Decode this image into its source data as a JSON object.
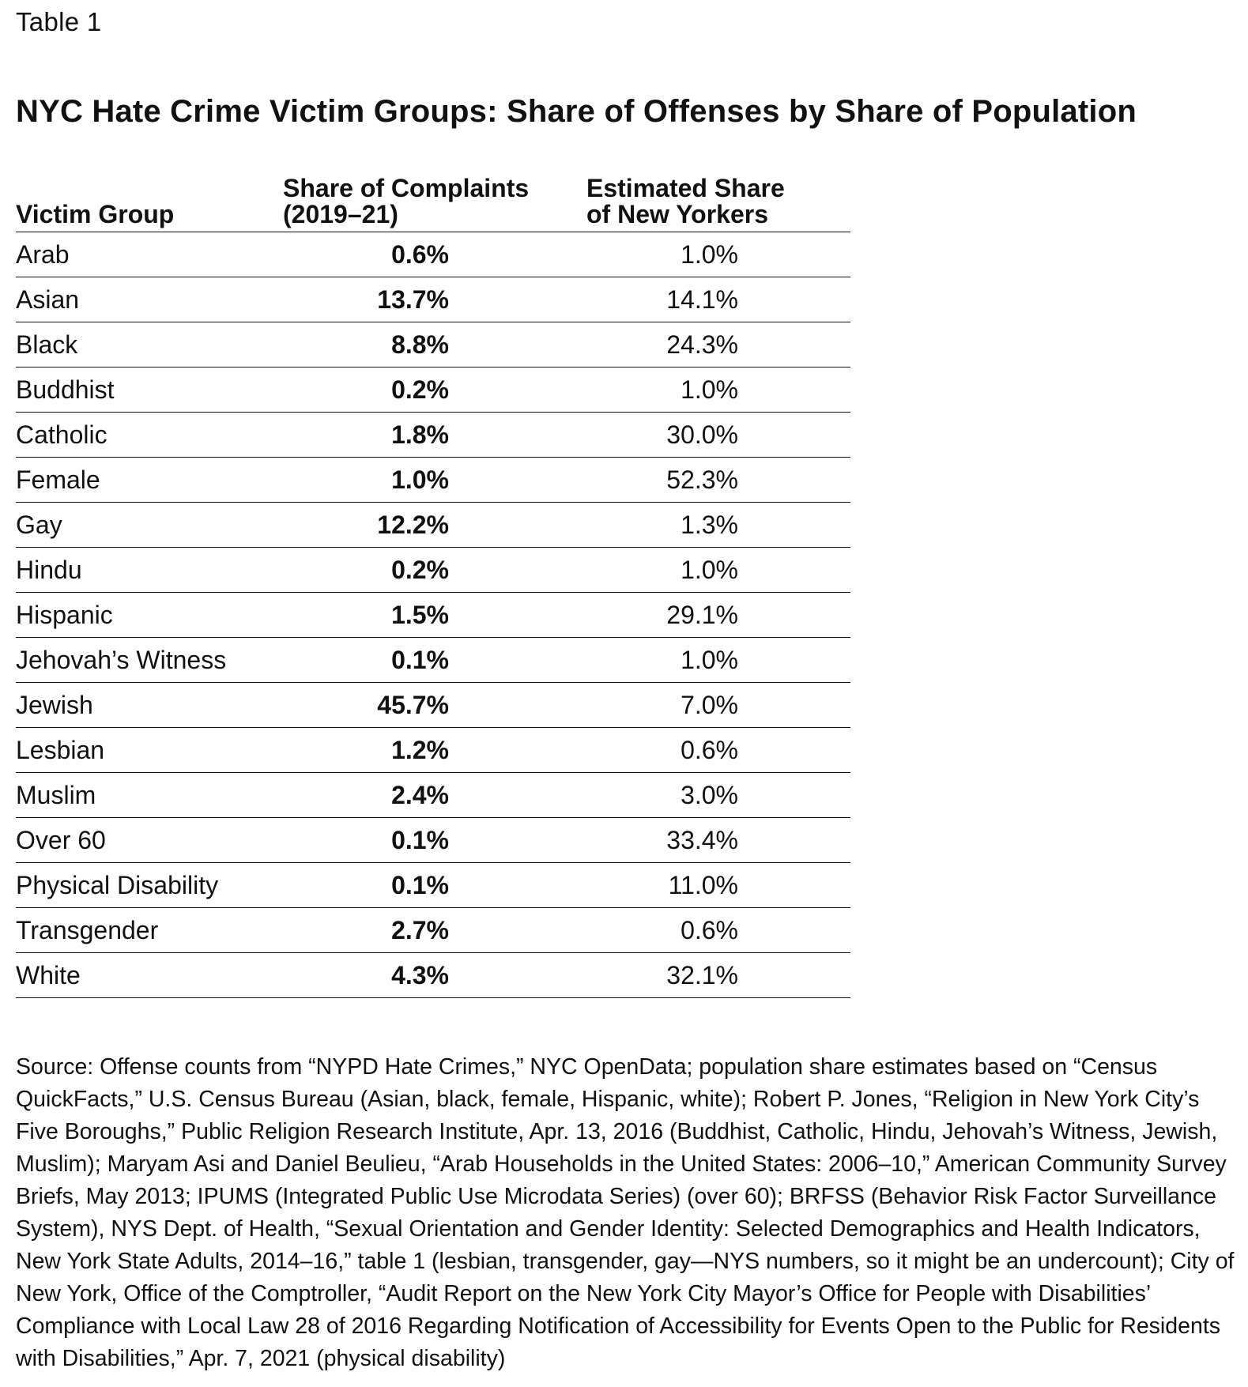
{
  "table_label": "Table 1",
  "title": "NYC Hate Crime Victim Groups: Share of Offenses by Share of Population",
  "columns": {
    "group": "Victim Group",
    "complaints_line1": "Share of Complaints",
    "complaints_line2": "(2019–21)",
    "share_line1": "Estimated Share",
    "share_line2": "of New Yorkers"
  },
  "rows": [
    {
      "group": "Arab",
      "complaints": "0.6%",
      "share": "1.0%"
    },
    {
      "group": "Asian",
      "complaints": "13.7%",
      "share": "14.1%"
    },
    {
      "group": "Black",
      "complaints": "8.8%",
      "share": "24.3%"
    },
    {
      "group": "Buddhist",
      "complaints": "0.2%",
      "share": "1.0%"
    },
    {
      "group": "Catholic",
      "complaints": "1.8%",
      "share": "30.0%"
    },
    {
      "group": "Female",
      "complaints": "1.0%",
      "share": "52.3%"
    },
    {
      "group": "Gay",
      "complaints": "12.2%",
      "share": "1.3%"
    },
    {
      "group": "Hindu",
      "complaints": "0.2%",
      "share": "1.0%"
    },
    {
      "group": "Hispanic",
      "complaints": "1.5%",
      "share": "29.1%"
    },
    {
      "group": "Jehovah’s Witness",
      "complaints": "0.1%",
      "share": "1.0%"
    },
    {
      "group": "Jewish",
      "complaints": "45.7%",
      "share": "7.0%"
    },
    {
      "group": "Lesbian",
      "complaints": "1.2%",
      "share": "0.6%"
    },
    {
      "group": "Muslim",
      "complaints": "2.4%",
      "share": "3.0%"
    },
    {
      "group": "Over 60",
      "complaints": "0.1%",
      "share": "33.4%"
    },
    {
      "group": "Physical Disability",
      "complaints": "0.1%",
      "share": "11.0%"
    },
    {
      "group": "Transgender",
      "complaints": "2.7%",
      "share": "0.6%"
    },
    {
      "group": "White",
      "complaints": "4.3%",
      "share": "32.1%"
    }
  ],
  "source_note": "Source: Offense counts from “NYPD Hate Crimes,” NYC OpenData; population share estimates based on “Census QuickFacts,” U.S. Census Bureau (Asian, black, female, Hispanic, white); Robert P. Jones, “Religion in New York City’s Five Boroughs,” Public Religion Research Institute, Apr. 13, 2016 (Buddhist, Catholic, Hindu, Jehovah’s Witness, Jewish, Muslim); Maryam Asi and Daniel Beulieu, “Arab Households in the United States: 2006–10,” American Community Survey Briefs, May 2013; IPUMS (Integrated Public Use Microdata Series) (over 60); BRFSS (Behavior Risk Factor Surveillance System), NYS Dept. of Health, “Sexual Orientation and Gender Identity: Selected Demographics and Health Indicators, New York State Adults, 2014–16,” table 1 (lesbian, transgender, gay—NYS numbers, so it might be an undercount); City of New York, Office of the Comptroller, “Audit Report on the New York City Mayor’s Office for People with Disabilities’ Compliance with Local Law 28 of 2016 Regarding Notification of Accessibility for Events Open to the Public for Residents with Disabilities,” Apr. 7, 2021 (physical disability)"
}
